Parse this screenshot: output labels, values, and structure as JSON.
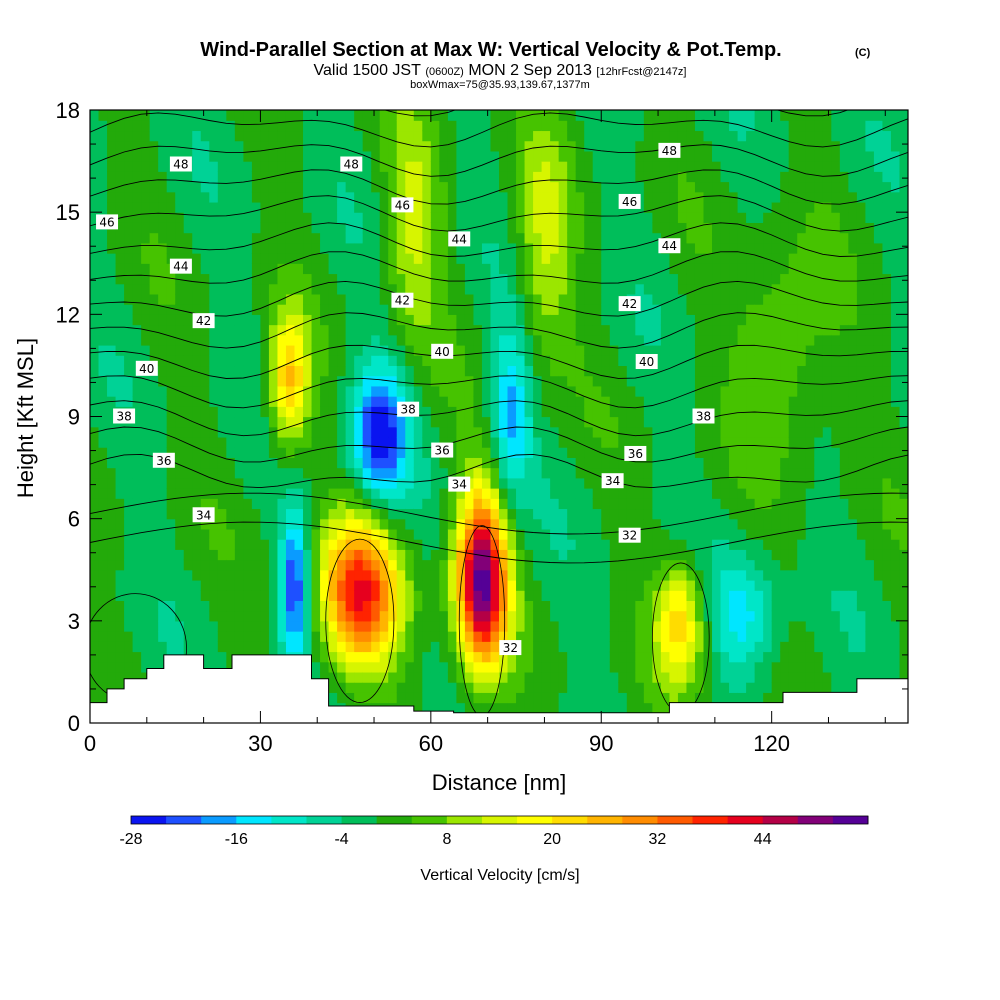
{
  "header": {
    "title": "Wind-Parallel Section at Max W: Vertical Velocity & Pot.Temp.",
    "title_mark": "(C)",
    "subtitle_pre": "Valid 1500 JST",
    "subtitle_zulu": "(0600Z)",
    "subtitle_mid": "MON 2 Sep 2013",
    "subtitle_fcst": "[12hrFcst@2147z]",
    "subtitle2": "boxWmax=75@35.93,139.67,1377m"
  },
  "chart_data": {
    "type": "heatmap",
    "xlabel": "Distance [nm]",
    "ylabel": "Height [Kft MSL]",
    "xlim": [
      0,
      144
    ],
    "ylim": [
      0,
      18
    ],
    "x_ticks": [
      0,
      30,
      60,
      90,
      120
    ],
    "y_ticks": [
      0,
      3,
      6,
      9,
      12,
      15,
      18
    ],
    "grid": false,
    "colorbar": {
      "label": "Vertical Velocity [cm/s]",
      "tick_values": [
        -28,
        -16,
        -4,
        8,
        20,
        32,
        44
      ],
      "levels": [
        -28,
        -24,
        -20,
        -16,
        -12,
        -8,
        -4,
        0,
        4,
        8,
        12,
        16,
        20,
        24,
        28,
        32,
        36,
        40,
        44,
        48,
        52
      ],
      "colors": [
        "#0a14f0",
        "#1e50ff",
        "#0a9bff",
        "#00e6ff",
        "#00e6c8",
        "#00d296",
        "#00be5a",
        "#23aa0a",
        "#46c300",
        "#9be600",
        "#d7f500",
        "#ffff00",
        "#ffdc00",
        "#ffb400",
        "#ff8c00",
        "#ff5a00",
        "#ff2300",
        "#e6001e",
        "#b40046",
        "#820078",
        "#550096"
      ]
    },
    "velocity_features": [
      {
        "kind": "updraft",
        "x": 47.5,
        "y": 3.8,
        "w_max": 38
      },
      {
        "kind": "updraft",
        "x": 69,
        "y": 4.2,
        "w_max": 52
      },
      {
        "kind": "updraft",
        "x": 104,
        "y": 3.0,
        "w_max": 22
      },
      {
        "kind": "updraft",
        "x": 35,
        "y": 10.0,
        "w_max": 24
      },
      {
        "kind": "updraft",
        "x": 57,
        "y": 14.5,
        "w_max": 12
      },
      {
        "kind": "updraft",
        "x": 80,
        "y": 14.0,
        "w_max": 12
      },
      {
        "kind": "updraft",
        "x": 122,
        "y": 11.0,
        "w_max": 10
      },
      {
        "kind": "downdraft",
        "x": 51,
        "y": 8.5,
        "w_max": -26
      },
      {
        "kind": "downdraft",
        "x": 36,
        "y": 4.0,
        "w_max": -24
      },
      {
        "kind": "downdraft",
        "x": 74,
        "y": 9.0,
        "w_max": -18
      },
      {
        "kind": "downdraft",
        "x": 115,
        "y": 3.2,
        "w_max": -12
      }
    ],
    "theta_isolines": {
      "levels": [
        32,
        33,
        34,
        35,
        36,
        37,
        38,
        39,
        40,
        41,
        42,
        43,
        44,
        45,
        46,
        47,
        48,
        49
      ],
      "labels": [
        {
          "text": "48",
          "x": 16,
          "y": 16.4
        },
        {
          "text": "48",
          "x": 46,
          "y": 16.4
        },
        {
          "text": "48",
          "x": 102,
          "y": 16.8
        },
        {
          "text": "46",
          "x": 3,
          "y": 14.7
        },
        {
          "text": "46",
          "x": 55,
          "y": 15.2
        },
        {
          "text": "46",
          "x": 95,
          "y": 15.3
        },
        {
          "text": "44",
          "x": 16,
          "y": 13.4
        },
        {
          "text": "44",
          "x": 65,
          "y": 14.2
        },
        {
          "text": "44",
          "x": 102,
          "y": 14.0
        },
        {
          "text": "42",
          "x": 20,
          "y": 11.8
        },
        {
          "text": "42",
          "x": 55,
          "y": 12.4
        },
        {
          "text": "42",
          "x": 95,
          "y": 12.3
        },
        {
          "text": "40",
          "x": 10,
          "y": 10.4
        },
        {
          "text": "40",
          "x": 62,
          "y": 10.9
        },
        {
          "text": "40",
          "x": 98,
          "y": 10.6
        },
        {
          "text": "38",
          "x": 6,
          "y": 9.0
        },
        {
          "text": "38",
          "x": 56,
          "y": 9.2
        },
        {
          "text": "38",
          "x": 108,
          "y": 9.0
        },
        {
          "text": "36",
          "x": 13,
          "y": 7.7
        },
        {
          "text": "36",
          "x": 62,
          "y": 8.0
        },
        {
          "text": "36",
          "x": 96,
          "y": 7.9
        },
        {
          "text": "34",
          "x": 20,
          "y": 6.1
        },
        {
          "text": "34",
          "x": 65,
          "y": 7.0
        },
        {
          "text": "34",
          "x": 92,
          "y": 7.1
        },
        {
          "text": "32",
          "x": 95,
          "y": 5.5
        },
        {
          "text": "32",
          "x": 74,
          "y": 2.2
        }
      ]
    },
    "terrain_kft": [
      [
        0,
        0.6
      ],
      [
        3,
        0.6
      ],
      [
        3,
        1.0
      ],
      [
        6,
        1.0
      ],
      [
        6,
        1.3
      ],
      [
        10,
        1.3
      ],
      [
        10,
        1.6
      ],
      [
        13,
        1.6
      ],
      [
        13,
        2.0
      ],
      [
        20,
        2.0
      ],
      [
        20,
        1.6
      ],
      [
        25,
        1.6
      ],
      [
        25,
        2.0
      ],
      [
        39,
        2.0
      ],
      [
        39,
        1.3
      ],
      [
        42,
        1.3
      ],
      [
        42,
        0.5
      ],
      [
        57,
        0.5
      ],
      [
        57,
        0.35
      ],
      [
        64,
        0.35
      ],
      [
        64,
        0.3
      ],
      [
        102,
        0.3
      ],
      [
        102,
        0.6
      ],
      [
        122,
        0.6
      ],
      [
        122,
        0.9
      ],
      [
        135,
        0.9
      ],
      [
        135,
        1.3
      ],
      [
        144,
        1.3
      ]
    ]
  }
}
